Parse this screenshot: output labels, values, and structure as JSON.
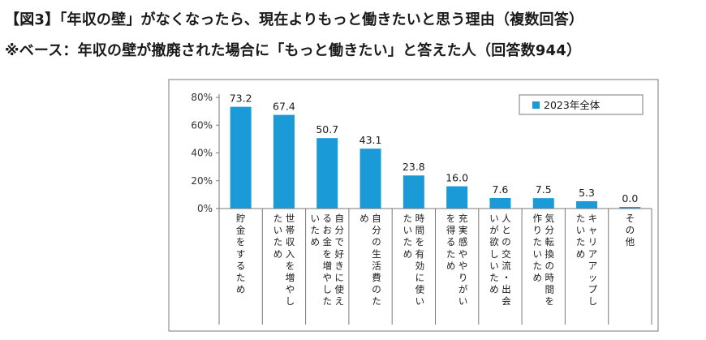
{
  "header": {
    "title": "【図3】「年収の壁」がなくなったら、現在よりもっと働きたいと思う理由（複数回答）",
    "subtitle": "※ベース：年収の壁が撤廃された場合に「もっと働きたい」と答えた人（回答数944）"
  },
  "colors": {
    "bar": "#1a9ad6",
    "grid": "#9a9a9a",
    "axis": "#7a7a7a"
  },
  "chart_data": {
    "type": "bar",
    "categories": [
      [
        "貯金をするため"
      ],
      [
        "世帯収入を増やし",
        "たいため"
      ],
      [
        "自分で好きに使え",
        "るお金を増やした",
        "いため"
      ],
      [
        "自分の生活費のた",
        "め"
      ],
      [
        "時間を有効に使い",
        "たいため"
      ],
      [
        "充実感ややりがい",
        "を得るため"
      ],
      [
        "人との交流・出会",
        "いが欲しいため"
      ],
      [
        "気分転換の時間を",
        "作りたいため"
      ],
      [
        "キャリアアップし",
        "たいため"
      ],
      [
        "その他"
      ]
    ],
    "series": [
      {
        "name": "2023年全体",
        "values": [
          73.2,
          67.4,
          50.7,
          43.1,
          23.8,
          16.0,
          7.6,
          7.5,
          5.3,
          0.0
        ]
      }
    ],
    "value_labels": [
      "73.2",
      "67.4",
      "50.7",
      "43.1",
      "23.8",
      "16.0",
      "7.6",
      "7.5",
      "5.3",
      "0.0"
    ],
    "yticks": [
      "0%",
      "20%",
      "40%",
      "60%",
      "80%"
    ],
    "ylim": [
      0,
      80
    ],
    "legend_position": "top-right",
    "grid": false
  }
}
